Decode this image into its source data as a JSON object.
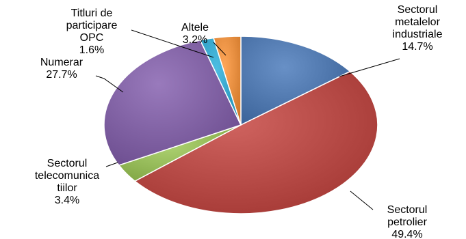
{
  "chart_data": {
    "type": "pie",
    "start_angle_deg": 0,
    "direction": "clockwise",
    "slices": [
      {
        "name_lines": [
          "Sectorul",
          "metalelor",
          "industriale"
        ],
        "value": 14.7,
        "pct": "14.7%",
        "color": "#4A72A8"
      },
      {
        "name_lines": [
          "Sectorul",
          "petrolier"
        ],
        "value": 49.4,
        "pct": "49.4%",
        "color": "#B24642"
      },
      {
        "name_lines": [
          "Sectorul",
          "telecomunica",
          "tiilor"
        ],
        "value": 3.4,
        "pct": "3.4%",
        "color": "#8FB453"
      },
      {
        "name_lines": [
          "Numerar"
        ],
        "value": 27.7,
        "pct": "27.7%",
        "color": "#7B5C9E"
      },
      {
        "name_lines": [
          "Titluri de",
          "participare",
          "OPC"
        ],
        "value": 1.6,
        "pct": "1.6%",
        "color": "#2F9FC4"
      },
      {
        "name_lines": [
          "Altele"
        ],
        "value": 3.2,
        "pct": "3.2%",
        "color": "#E0883A"
      }
    ]
  }
}
